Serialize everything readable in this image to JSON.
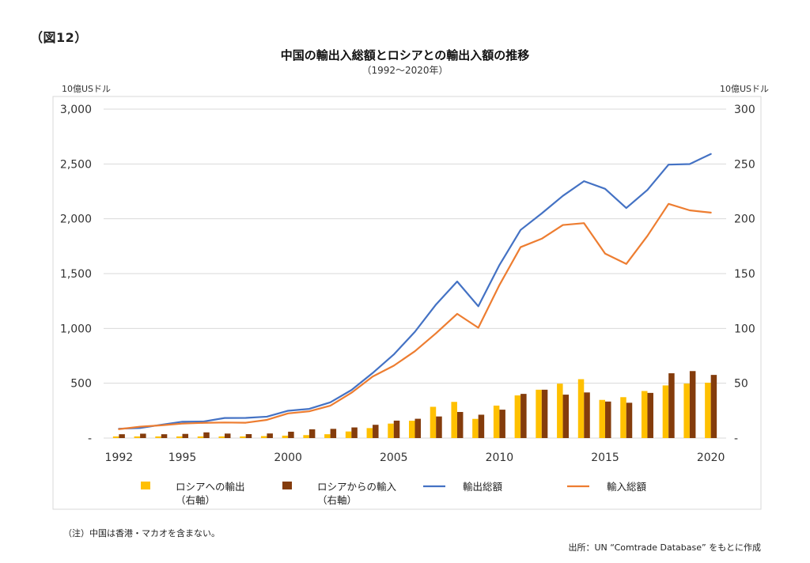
{
  "figure_label": "（図12）",
  "note": "（注）中国は香港・マカオを含まない。",
  "source": "出所：UN “Comtrade Database” をもとに作成",
  "colors": {
    "export_to_russia": "#FFC000",
    "import_from_russia": "#843C0C",
    "total_exports": "#4472C4",
    "total_imports": "#ED7D31",
    "grid": "#D9D9D9",
    "frame": "#D9D9D9"
  },
  "chart_data": {
    "type": "bar+line",
    "title": "中国の輸出入総額とロシアとの輸出入額の推移",
    "subtitle": "（1992～2020年）",
    "ylabel_left": "10億USドル",
    "ylabel_right": "10億USドル",
    "ylim_left": [
      0,
      3000
    ],
    "ylim_right": [
      0,
      300
    ],
    "yticks_left": [
      "-",
      "500",
      "1,000",
      "1,500",
      "2,000",
      "2,500",
      "3,000"
    ],
    "yticks_right": [
      "-",
      "50",
      "100",
      "150",
      "200",
      "250",
      "300"
    ],
    "years": [
      1992,
      1993,
      1994,
      1995,
      1996,
      1997,
      1998,
      1999,
      2000,
      2001,
      2002,
      2003,
      2004,
      2005,
      2006,
      2007,
      2008,
      2009,
      2010,
      2011,
      2012,
      2013,
      2014,
      2015,
      2016,
      2017,
      2018,
      2019,
      2020
    ],
    "xtick_labels": [
      "1992",
      "1995",
      "2000",
      "2005",
      "2010",
      "2015",
      "2020"
    ],
    "grid": true,
    "legend_position": "bottom",
    "series": [
      {
        "name": "ロシアへの輸出\n（右軸）",
        "type": "bar",
        "axis": "right",
        "color_key": "export_to_russia",
        "values": [
          1.5,
          1.5,
          1.5,
          1.5,
          1.5,
          1.5,
          1.5,
          1.8,
          2.2,
          2.7,
          3.5,
          6.0,
          9.1,
          13.2,
          15.8,
          28.5,
          33.0,
          17.5,
          29.6,
          38.9,
          44.1,
          49.6,
          53.7,
          34.8,
          37.3,
          42.9,
          48.0,
          49.7,
          50.5
        ]
      },
      {
        "name": "ロシアからの輸入\n（右軸）",
        "type": "bar",
        "axis": "right",
        "color_key": "import_from_russia",
        "values": [
          3.5,
          4.0,
          3.5,
          3.8,
          5.2,
          4.1,
          3.6,
          4.2,
          5.8,
          8.0,
          8.4,
          9.7,
          12.1,
          15.9,
          17.6,
          19.7,
          23.8,
          21.3,
          25.9,
          40.3,
          44.1,
          39.6,
          41.6,
          33.3,
          32.2,
          41.2,
          59.1,
          61.1,
          57.6
        ]
      },
      {
        "name": "輸出総額",
        "type": "line",
        "axis": "left",
        "color_key": "total_exports",
        "values": [
          85,
          92,
          121,
          149,
          151,
          183,
          184,
          195,
          249,
          266,
          326,
          438,
          593,
          762,
          969,
          1218,
          1428,
          1202,
          1578,
          1898,
          2049,
          2209,
          2343,
          2273,
          2098,
          2263,
          2494,
          2499,
          2591
        ]
      },
      {
        "name": "輸入総額",
        "type": "line",
        "axis": "left",
        "color_key": "total_imports",
        "values": [
          81,
          104,
          116,
          132,
          139,
          142,
          140,
          166,
          225,
          244,
          295,
          413,
          561,
          660,
          792,
          956,
          1133,
          1006,
          1396,
          1741,
          1818,
          1943,
          1960,
          1682,
          1588,
          1844,
          2136,
          2077,
          2056
        ]
      }
    ]
  }
}
